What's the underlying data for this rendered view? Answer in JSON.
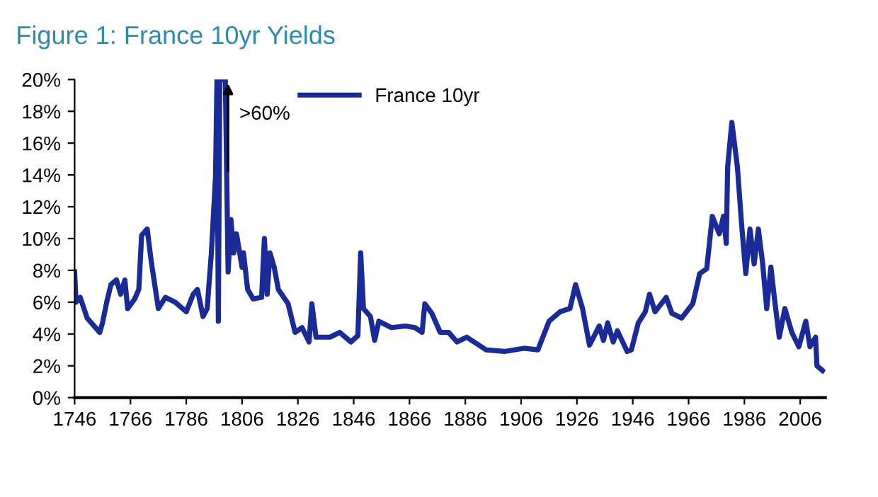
{
  "chart_data": {
    "type": "line",
    "title": "Figure 1: France 10yr Yields",
    "legend": "top",
    "grid": false,
    "x": [
      1746,
      1746.5,
      1748,
      1750.5,
      1753,
      1755,
      1756,
      1757.5,
      1759,
      1761,
      1762.5,
      1764,
      1765,
      1767.5,
      1769,
      1770,
      1772,
      1773.5,
      1776,
      1778.5,
      1782,
      1786,
      1788.5,
      1790,
      1792,
      1793.5,
      1795,
      1796.5,
      1797,
      1797.5,
      1798,
      1800,
      1801,
      1802,
      1803,
      1804,
      1806,
      1806.5,
      1808,
      1810,
      1813,
      1814,
      1815,
      1816,
      1817.5,
      1819,
      1822.5,
      1825,
      1827.5,
      1830,
      1831,
      1832.5,
      1837.5,
      1841,
      1845,
      1847.5,
      1848.5,
      1849.5,
      1852,
      1853.5,
      1855,
      1859.5,
      1864.5,
      1868,
      1870.5,
      1871.5,
      1874,
      1877,
      1880,
      1883,
      1886.5,
      1893.5,
      1900,
      1907,
      1912,
      1916,
      1920,
      1923.5,
      1925.5,
      1928,
      1930.5,
      1934,
      1935.5,
      1937,
      1939,
      1940.5,
      1944,
      1945.5,
      1948,
      1950.5,
      1952,
      1954,
      1958,
      1960,
      1963.5,
      1967.5,
      1970,
      1972.5,
      1974.5,
      1977,
      1978.5,
      1979.5,
      1980,
      1981.5,
      1983.5,
      1985,
      1986.5,
      1988,
      1989.5,
      1991,
      1992.5,
      1994,
      1995.5,
      1997,
      1998.5,
      2000.5,
      2003,
      2005.5,
      2008,
      2009.5,
      2011.5,
      2012,
      2014
    ],
    "series": [
      {
        "name": "France 10yr",
        "color": "#1a2a96",
        "values": [
          7.9,
          6.0,
          6.3,
          5.0,
          4.5,
          4.1,
          4.7,
          6.0,
          7.1,
          7.4,
          6.5,
          7.4,
          5.6,
          6.2,
          6.8,
          10.2,
          10.6,
          8.5,
          5.6,
          6.3,
          6.0,
          5.4,
          6.5,
          6.8,
          5.1,
          5.6,
          9.1,
          13.9,
          20,
          4.8,
          20,
          20,
          7.9,
          11.2,
          9.1,
          10.3,
          8.2,
          9.1,
          6.8,
          6.2,
          6.3,
          10.0,
          6.5,
          9.1,
          8.2,
          6.8,
          5.9,
          4.1,
          4.4,
          3.5,
          5.9,
          3.8,
          3.8,
          4.1,
          3.5,
          3.9,
          9.1,
          5.6,
          5.1,
          3.6,
          4.8,
          4.4,
          4.5,
          4.4,
          4.1,
          5.9,
          5.3,
          4.1,
          4.1,
          3.5,
          3.8,
          3.0,
          2.9,
          3.1,
          3.0,
          4.8,
          5.4,
          5.6,
          7.1,
          5.6,
          3.3,
          4.5,
          3.6,
          4.7,
          3.5,
          4.2,
          2.9,
          3.0,
          4.7,
          5.4,
          6.5,
          5.4,
          6.3,
          5.3,
          5.0,
          5.9,
          7.8,
          8.1,
          11.4,
          10.3,
          11.4,
          9.7,
          14.5,
          17.3,
          14.5,
          10.9,
          7.8,
          10.6,
          8.4,
          10.6,
          8.5,
          5.6,
          8.2,
          5.9,
          3.8,
          5.6,
          4.1,
          3.2,
          4.8,
          3.2,
          3.8,
          2.0,
          1.7
        ]
      }
    ],
    "xlim": [
      1746,
      2015
    ],
    "xticks": [
      1746,
      1766,
      1786,
      1806,
      1826,
      1846,
      1866,
      1886,
      1906,
      1926,
      1946,
      1966,
      1986,
      2006
    ],
    "ylim": [
      0,
      20
    ],
    "yticks": [
      {
        "value": 0,
        "label": "0%"
      },
      {
        "value": 2,
        "label": "2%"
      },
      {
        "value": 4,
        "label": "4%"
      },
      {
        "value": 6,
        "label": "6%"
      },
      {
        "value": 8,
        "label": "8%"
      },
      {
        "value": 10,
        "label": "10%"
      },
      {
        "value": 12,
        "label": "12%"
      },
      {
        "value": 14,
        "label": "14%"
      },
      {
        "value": 16,
        "label": "16%"
      },
      {
        "value": 18,
        "label": "18%"
      },
      {
        "value": 20,
        "label": "20%"
      }
    ],
    "annotations": [
      {
        "text": ">60%",
        "x": 1801,
        "y": 20
      }
    ]
  }
}
